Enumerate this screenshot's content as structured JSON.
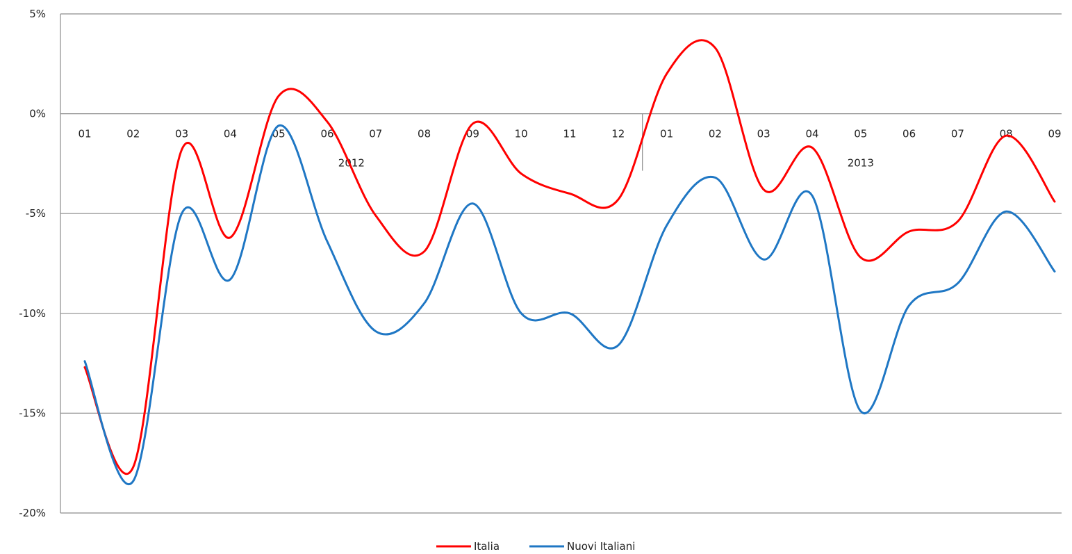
{
  "chart_data": {
    "type": "line",
    "y_tick_labels": [
      "5%",
      "0%",
      "-5%",
      "-10%",
      "-15%",
      "-20%"
    ],
    "y_ticks": [
      5,
      0,
      -5,
      -10,
      -15,
      -20
    ],
    "ylim": [
      -20,
      5
    ],
    "x_month_labels": [
      "01",
      "02",
      "03",
      "04",
      "05",
      "06",
      "07",
      "08",
      "09",
      "10",
      "11",
      "12",
      "01",
      "02",
      "03",
      "04",
      "05",
      "06",
      "07",
      "08",
      "09"
    ],
    "x_year_labels": [
      {
        "label": "2012",
        "start": 0,
        "end": 11
      },
      {
        "label": "2013",
        "start": 12,
        "end": 20
      }
    ],
    "grid": true,
    "legend_position": "bottom-center",
    "series": [
      {
        "name": "Italia",
        "color": "#ff0000",
        "values": [
          -12.7,
          -17.7,
          -1.8,
          -6.2,
          0.9,
          -0.4,
          -5.1,
          -6.9,
          -0.5,
          -3.0,
          -4.0,
          -4.3,
          2.0,
          3.3,
          -3.8,
          -1.7,
          -7.2,
          -5.9,
          -5.4,
          -1.1,
          -4.4
        ]
      },
      {
        "name": "Nuovi Italiani",
        "color": "#1f77c4",
        "values": [
          -12.4,
          -18.4,
          -5.0,
          -8.3,
          -0.6,
          -6.4,
          -10.9,
          -9.5,
          -4.5,
          -10.0,
          -10.0,
          -11.6,
          -5.6,
          -3.2,
          -7.3,
          -4.1,
          -14.9,
          -9.6,
          -8.5,
          -4.9,
          -7.9
        ]
      }
    ]
  }
}
